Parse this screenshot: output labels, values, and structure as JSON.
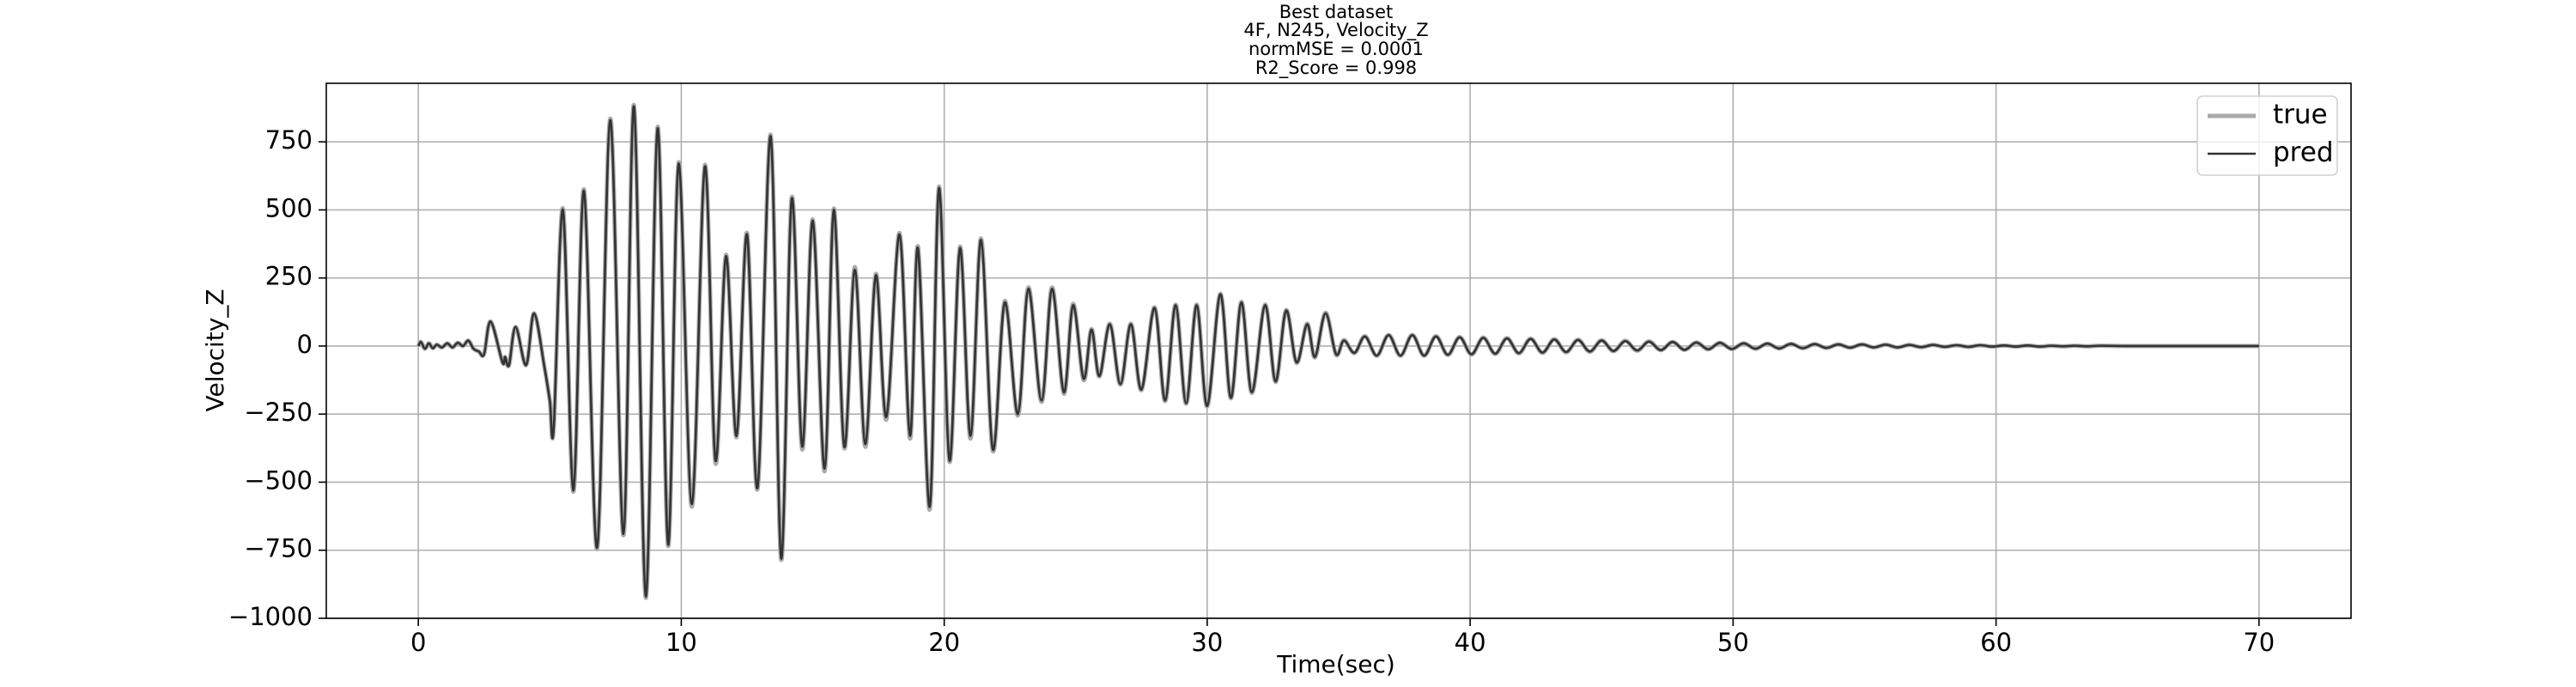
{
  "chart_data": {
    "type": "line",
    "title": "Best dataset",
    "subtitle": [
      "4F, N245, Velocity_Z",
      "normMSE = 0.0001",
      "R2_Score = 0.998"
    ],
    "xlabel": "Time(sec)",
    "ylabel": "Velocity_Z",
    "xlim": [
      -3.5,
      73.5
    ],
    "ylim": [
      -1000,
      965
    ],
    "xticks": [
      0,
      10,
      20,
      30,
      40,
      50,
      60,
      70
    ],
    "yticks": [
      {
        "value": -1000,
        "label": "−1000"
      },
      {
        "value": -750,
        "label": "−750"
      },
      {
        "value": -500,
        "label": "−500"
      },
      {
        "value": -250,
        "label": "−250"
      },
      0,
      250,
      500,
      750
    ],
    "grid": true,
    "legend": "upper right",
    "x": [
      0,
      0.1,
      0.25,
      0.4,
      0.55,
      0.7,
      0.9,
      1.1,
      1.3,
      1.5,
      1.7,
      1.9,
      2.1,
      2.3,
      2.5,
      2.75,
      3.2,
      3.3,
      3.45,
      3.7,
      4.1,
      4.4,
      4.8,
      5.0,
      5.15,
      5.5,
      5.9,
      6.3,
      6.8,
      7.3,
      7.8,
      8.2,
      8.65,
      9.1,
      9.5,
      9.9,
      10.4,
      10.9,
      11.3,
      11.7,
      12.1,
      12.5,
      12.9,
      13.4,
      13.8,
      14.2,
      14.6,
      15.0,
      15.45,
      15.8,
      16.2,
      16.6,
      17.0,
      17.4,
      17.8,
      18.3,
      18.7,
      19.0,
      19.45,
      19.8,
      20.2,
      20.6,
      21.0,
      21.4,
      21.85,
      22.3,
      22.8,
      23.2,
      23.7,
      24.1,
      24.55,
      24.9,
      25.3,
      25.6,
      25.9,
      26.3,
      26.7,
      27.1,
      27.5,
      28.0,
      28.4,
      28.8,
      29.2,
      29.6,
      30.0,
      30.5,
      30.9,
      31.3,
      31.7,
      32.2,
      32.6,
      33.0,
      33.4,
      33.8,
      34.1,
      34.5,
      34.9,
      35.2,
      35.6,
      36.0,
      36.45,
      36.9,
      37.35,
      37.8,
      38.25,
      38.7,
      39.15,
      39.6,
      40.05,
      40.5,
      40.95,
      41.4,
      41.85,
      42.3,
      42.75,
      43.2,
      43.65,
      44.1,
      44.55,
      45.0,
      45.45,
      45.9,
      46.35,
      46.8,
      47.25,
      47.7,
      48.15,
      48.6,
      49.05,
      49.5,
      49.95,
      50.4,
      50.85,
      51.3,
      51.75,
      52.2,
      52.65,
      53.1,
      53.55,
      54.0,
      54.45,
      54.9,
      55.35,
      55.8,
      56.25,
      56.7,
      57.15,
      57.6,
      58.05,
      58.5,
      58.95,
      59.4,
      59.85,
      60.3,
      60.75,
      61.2,
      61.65,
      62.1,
      62.55,
      63.0,
      63.45,
      64,
      65,
      67,
      70
    ],
    "series": [
      {
        "name": "true",
        "color": "#aaaaaa",
        "values": [
          0,
          15,
          -10,
          10,
          -8,
          5,
          -5,
          10,
          -5,
          12,
          0,
          20,
          -10,
          -20,
          -30,
          90,
          -60,
          -40,
          -70,
          70,
          -70,
          120,
          -80,
          -200,
          -300,
          505,
          -535,
          575,
          -745,
          835,
          -695,
          885,
          -925,
          805,
          -735,
          675,
          -590,
          665,
          -430,
          335,
          -335,
          415,
          -525,
          775,
          -785,
          545,
          -380,
          465,
          -460,
          505,
          -375,
          290,
          -370,
          265,
          -270,
          415,
          -340,
          365,
          -600,
          585,
          -425,
          365,
          -340,
          395,
          -385,
          165,
          -255,
          215,
          -205,
          215,
          -175,
          155,
          -125,
          62,
          -112,
          82,
          -142,
          82,
          -162,
          142,
          -202,
          152,
          -212,
          152,
          -222,
          192,
          -192,
          162,
          -172,
          152,
          -132,
          132,
          -62,
          82,
          -42,
          122,
          -32,
          22,
          -26,
          36,
          -36,
          41,
          -36,
          41,
          -36,
          36,
          -33,
          33,
          -31,
          31,
          -29,
          29,
          -27,
          27,
          -25,
          25,
          -23,
          23,
          -21,
          21,
          -19,
          19,
          -17,
          17,
          -15,
          15,
          -14,
          13,
          -12,
          12,
          -11,
          10,
          -10,
          9,
          -9,
          8,
          -8,
          7,
          -7,
          6,
          -6,
          6,
          -5,
          5,
          -5,
          4,
          -4,
          4,
          -3,
          3,
          -3,
          3,
          -2,
          2,
          -2,
          2,
          -2,
          1,
          -1,
          1,
          -1,
          1,
          0,
          0,
          0
        ]
      },
      {
        "name": "pred",
        "color": "#333333",
        "values": [
          0,
          15,
          -10,
          10,
          -8,
          5,
          -5,
          10,
          -5,
          12,
          0,
          20,
          -10,
          -20,
          -30,
          90,
          -60,
          -40,
          -70,
          70,
          -70,
          120,
          -80,
          -200,
          -300,
          500,
          -530,
          570,
          -740,
          830,
          -690,
          880,
          -920,
          800,
          -730,
          670,
          -580,
          660,
          -420,
          330,
          -330,
          410,
          -520,
          770,
          -780,
          540,
          -370,
          460,
          -450,
          500,
          -370,
          280,
          -360,
          260,
          -260,
          410,
          -330,
          360,
          -590,
          580,
          -420,
          360,
          -330,
          390,
          -380,
          160,
          -250,
          210,
          -200,
          210,
          -170,
          150,
          -120,
          60,
          -110,
          80,
          -140,
          80,
          -160,
          140,
          -200,
          150,
          -210,
          150,
          -220,
          190,
          -190,
          160,
          -170,
          150,
          -130,
          130,
          -60,
          80,
          -40,
          120,
          -30,
          20,
          -25,
          35,
          -35,
          40,
          -35,
          40,
          -35,
          35,
          -32,
          32,
          -30,
          30,
          -28,
          28,
          -26,
          26,
          -24,
          24,
          -22,
          22,
          -20,
          20,
          -18,
          18,
          -16,
          16,
          -15,
          15,
          -14,
          13,
          -12,
          12,
          -11,
          10,
          -10,
          9,
          -9,
          8,
          -8,
          7,
          -7,
          6,
          -6,
          6,
          -5,
          5,
          -5,
          4,
          -4,
          4,
          -3,
          3,
          -3,
          3,
          -2,
          2,
          -2,
          2,
          -2,
          1,
          -1,
          1,
          -1,
          1,
          0,
          0,
          0
        ]
      }
    ]
  }
}
